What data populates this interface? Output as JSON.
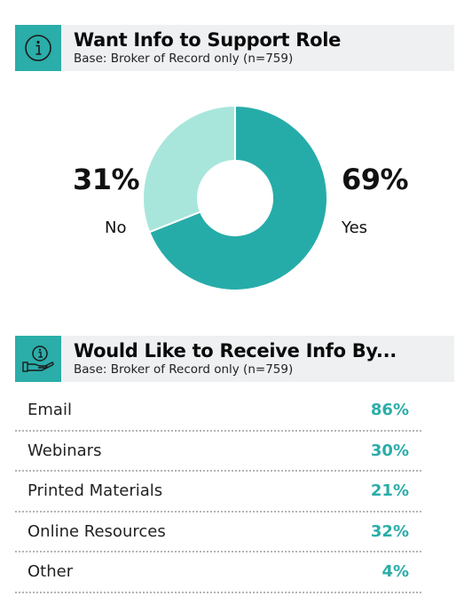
{
  "section1": {
    "title": "Want Info to Support Role",
    "subtitle": "Base: Broker of Record only (n=759)",
    "icon": "info-icon"
  },
  "chart_data": {
    "type": "pie",
    "donut": true,
    "categories": [
      "Yes",
      "No"
    ],
    "values": [
      69,
      31
    ],
    "value_labels": [
      "69%",
      "31%"
    ],
    "colors": [
      "#26aca8",
      "#a8e6dc"
    ]
  },
  "section2": {
    "title": "Would Like to Receive Info By...",
    "subtitle": "Base: Broker of Record only (n=759)",
    "icon": "info-hand-icon",
    "items": [
      {
        "label": "Email",
        "value": "86%"
      },
      {
        "label": "Webinars",
        "value": "30%"
      },
      {
        "label": "Printed Materials",
        "value": "21%"
      },
      {
        "label": "Online Resources",
        "value": "32%"
      },
      {
        "label": "Other",
        "value": "4%"
      }
    ]
  }
}
